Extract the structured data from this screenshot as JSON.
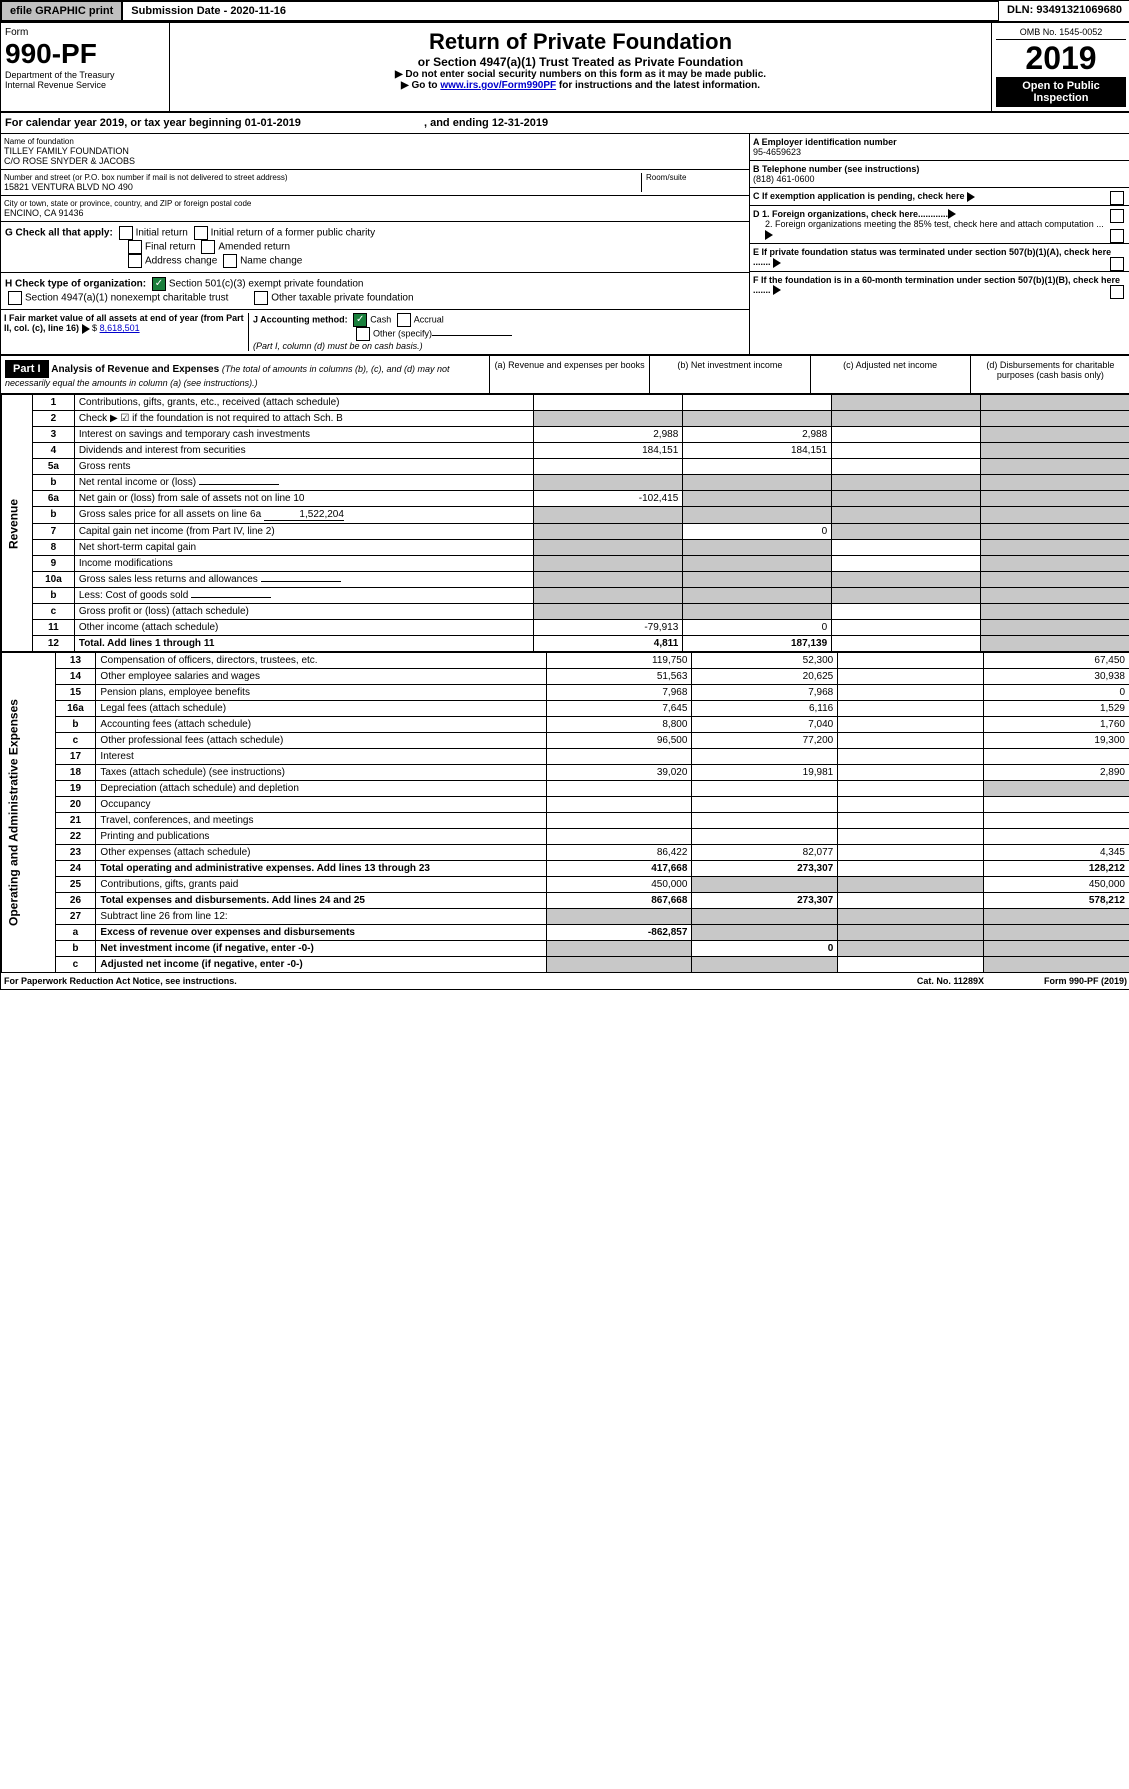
{
  "top": {
    "efile": "efile GRAPHIC print",
    "submission": "Submission Date - 2020-11-16",
    "dln": "DLN: 93491321069680"
  },
  "header": {
    "form_word": "Form",
    "form_num": "990-PF",
    "dept": "Department of the Treasury",
    "irs": "Internal Revenue Service",
    "title": "Return of Private Foundation",
    "subtitle": "or Section 4947(a)(1) Trust Treated as Private Foundation",
    "instr1": "▶ Do not enter social security numbers on this form as it may be made public.",
    "instr2_a": "▶ Go to ",
    "instr2_link": "www.irs.gov/Form990PF",
    "instr2_b": " for instructions and the latest information.",
    "omb": "OMB No. 1545-0052",
    "year": "2019",
    "open": "Open to Public Inspection"
  },
  "calyear": {
    "text_a": "For calendar year 2019, or tax year beginning 01-01-2019",
    "text_b": ", and ending 12-31-2019"
  },
  "entity": {
    "name_label": "Name of foundation",
    "name1": "TILLEY FAMILY FOUNDATION",
    "name2": "C/O ROSE SNYDER & JACOBS",
    "addr_label": "Number and street (or P.O. box number if mail is not delivered to street address)",
    "addr": "15821 VENTURA BLVD NO 490",
    "room_label": "Room/suite",
    "city_label": "City or town, state or province, country, and ZIP or foreign postal code",
    "city": "ENCINO, CA  91436"
  },
  "right": {
    "a_label": "A Employer identification number",
    "a_val": "95-4659623",
    "b_label": "B Telephone number (see instructions)",
    "b_val": "(818) 461-0600",
    "c_label": "C If exemption application is pending, check here",
    "d1": "D 1. Foreign organizations, check here............",
    "d2": "2. Foreign organizations meeting the 85% test, check here and attach computation ...",
    "e_label": "E  If private foundation status was terminated under section 507(b)(1)(A), check here .......",
    "f_label": "F  If the foundation is in a 60-month termination under section 507(b)(1)(B), check here ......."
  },
  "g": {
    "label": "G Check all that apply:",
    "opts": [
      "Initial return",
      "Initial return of a former public charity",
      "Final return",
      "Amended return",
      "Address change",
      "Name change"
    ]
  },
  "h": {
    "label": "H Check type of organization:",
    "o1": "Section 501(c)(3) exempt private foundation",
    "o2": "Section 4947(a)(1) nonexempt charitable trust",
    "o3": "Other taxable private foundation"
  },
  "i": {
    "label": "I Fair market value of all assets at end of year (from Part II, col. (c), line 16)",
    "val": "8,618,501"
  },
  "j": {
    "label": "J Accounting method:",
    "cash": "Cash",
    "accrual": "Accrual",
    "other": "Other (specify)",
    "note": "(Part I, column (d) must be on cash basis.)"
  },
  "part1": {
    "hdr": "Part I",
    "title": "Analysis of Revenue and Expenses",
    "sub": "(The total of amounts in columns (b), (c), and (d) may not necessarily equal the amounts in column (a) (see instructions).)",
    "cols": {
      "a": "(a)   Revenue and expenses per books",
      "b": "(b)  Net investment income",
      "c": "(c)  Adjusted net income",
      "d": "(d)  Disbursements for charitable purposes (cash basis only)"
    }
  },
  "rev_label": "Revenue",
  "exp_label": "Operating and Administrative Expenses",
  "lines": [
    {
      "n": "1",
      "d": "Contributions, gifts, grants, etc., received (attach schedule)",
      "a": "",
      "b": "",
      "c": "s",
      "dv": "s"
    },
    {
      "n": "2",
      "d": "Check ▶ ☑ if the foundation is not required to attach Sch. B",
      "a": "s",
      "b": "s",
      "c": "s",
      "dv": "s",
      "special": true
    },
    {
      "n": "3",
      "d": "Interest on savings and temporary cash investments",
      "a": "2,988",
      "b": "2,988",
      "c": "",
      "dv": "s"
    },
    {
      "n": "4",
      "d": "Dividends and interest from securities",
      "a": "184,151",
      "b": "184,151",
      "c": "",
      "dv": "s"
    },
    {
      "n": "5a",
      "d": "Gross rents",
      "a": "",
      "b": "",
      "c": "",
      "dv": "s"
    },
    {
      "n": "b",
      "d": "Net rental income or (loss)",
      "a": "s",
      "b": "s",
      "c": "s",
      "dv": "s",
      "underline": true
    },
    {
      "n": "6a",
      "d": "Net gain or (loss) from sale of assets not on line 10",
      "a": "-102,415",
      "b": "s",
      "c": "s",
      "dv": "s"
    },
    {
      "n": "b",
      "d": "Gross sales price for all assets on line 6a",
      "a": "s",
      "b": "s",
      "c": "s",
      "dv": "s",
      "inline_val": "1,522,204"
    },
    {
      "n": "7",
      "d": "Capital gain net income (from Part IV, line 2)",
      "a": "s",
      "b": "0",
      "c": "s",
      "dv": "s"
    },
    {
      "n": "8",
      "d": "Net short-term capital gain",
      "a": "s",
      "b": "s",
      "c": "",
      "dv": "s"
    },
    {
      "n": "9",
      "d": "Income modifications",
      "a": "s",
      "b": "s",
      "c": "",
      "dv": "s"
    },
    {
      "n": "10a",
      "d": "Gross sales less returns and allowances",
      "a": "s",
      "b": "s",
      "c": "s",
      "dv": "s",
      "underline": true
    },
    {
      "n": "b",
      "d": "Less: Cost of goods sold",
      "a": "s",
      "b": "s",
      "c": "s",
      "dv": "s",
      "underline": true
    },
    {
      "n": "c",
      "d": "Gross profit or (loss) (attach schedule)",
      "a": "s",
      "b": "s",
      "c": "",
      "dv": "s"
    },
    {
      "n": "11",
      "d": "Other income (attach schedule)",
      "a": "-79,913",
      "b": "0",
      "c": "",
      "dv": "s"
    },
    {
      "n": "12",
      "d": "Total. Add lines 1 through 11",
      "a": "4,811",
      "b": "187,139",
      "c": "",
      "dv": "s",
      "bold": true
    }
  ],
  "exp_lines": [
    {
      "n": "13",
      "d": "Compensation of officers, directors, trustees, etc.",
      "a": "119,750",
      "b": "52,300",
      "c": "",
      "dv": "67,450"
    },
    {
      "n": "14",
      "d": "Other employee salaries and wages",
      "a": "51,563",
      "b": "20,625",
      "c": "",
      "dv": "30,938"
    },
    {
      "n": "15",
      "d": "Pension plans, employee benefits",
      "a": "7,968",
      "b": "7,968",
      "c": "",
      "dv": "0"
    },
    {
      "n": "16a",
      "d": "Legal fees (attach schedule)",
      "a": "7,645",
      "b": "6,116",
      "c": "",
      "dv": "1,529"
    },
    {
      "n": "b",
      "d": "Accounting fees (attach schedule)",
      "a": "8,800",
      "b": "7,040",
      "c": "",
      "dv": "1,760"
    },
    {
      "n": "c",
      "d": "Other professional fees (attach schedule)",
      "a": "96,500",
      "b": "77,200",
      "c": "",
      "dv": "19,300"
    },
    {
      "n": "17",
      "d": "Interest",
      "a": "",
      "b": "",
      "c": "",
      "dv": ""
    },
    {
      "n": "18",
      "d": "Taxes (attach schedule) (see instructions)",
      "a": "39,020",
      "b": "19,981",
      "c": "",
      "dv": "2,890"
    },
    {
      "n": "19",
      "d": "Depreciation (attach schedule) and depletion",
      "a": "",
      "b": "",
      "c": "",
      "dv": "s"
    },
    {
      "n": "20",
      "d": "Occupancy",
      "a": "",
      "b": "",
      "c": "",
      "dv": ""
    },
    {
      "n": "21",
      "d": "Travel, conferences, and meetings",
      "a": "",
      "b": "",
      "c": "",
      "dv": ""
    },
    {
      "n": "22",
      "d": "Printing and publications",
      "a": "",
      "b": "",
      "c": "",
      "dv": ""
    },
    {
      "n": "23",
      "d": "Other expenses (attach schedule)",
      "a": "86,422",
      "b": "82,077",
      "c": "",
      "dv": "4,345"
    },
    {
      "n": "24",
      "d": "Total operating and administrative expenses. Add lines 13 through 23",
      "a": "417,668",
      "b": "273,307",
      "c": "",
      "dv": "128,212",
      "bold": true
    },
    {
      "n": "25",
      "d": "Contributions, gifts, grants paid",
      "a": "450,000",
      "b": "s",
      "c": "s",
      "dv": "450,000"
    },
    {
      "n": "26",
      "d": "Total expenses and disbursements. Add lines 24 and 25",
      "a": "867,668",
      "b": "273,307",
      "c": "",
      "dv": "578,212",
      "bold": true
    },
    {
      "n": "27",
      "d": "Subtract line 26 from line 12:",
      "a": "s",
      "b": "s",
      "c": "s",
      "dv": "s"
    },
    {
      "n": "a",
      "d": "Excess of revenue over expenses and disbursements",
      "a": "-862,857",
      "b": "s",
      "c": "s",
      "dv": "s",
      "bold": true
    },
    {
      "n": "b",
      "d": "Net investment income (if negative, enter -0-)",
      "a": "s",
      "b": "0",
      "c": "s",
      "dv": "s",
      "bold": true
    },
    {
      "n": "c",
      "d": "Adjusted net income (if negative, enter -0-)",
      "a": "s",
      "b": "s",
      "c": "",
      "dv": "s",
      "bold": true
    }
  ],
  "footer": {
    "left": "For Paperwork Reduction Act Notice, see instructions.",
    "mid": "Cat. No. 11289X",
    "right": "Form 990-PF (2019)"
  }
}
